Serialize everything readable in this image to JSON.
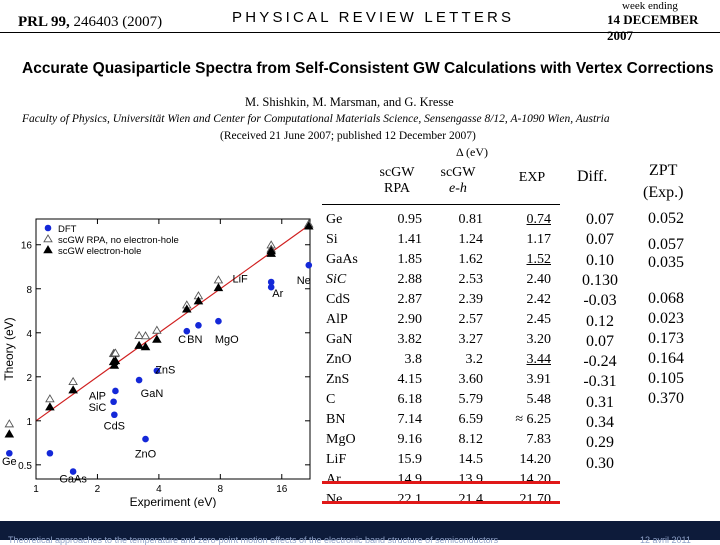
{
  "header": {
    "journal": "PRL",
    "volume": "99,",
    "article": "246403 (2007)",
    "journal_title": "PHYSICAL REVIEW LETTERS",
    "week_ending": "week ending",
    "date": "14 DECEMBER 2007"
  },
  "paper": {
    "title": "Accurate Quasiparticle Spectra from Self-Consistent GW Calculations with Vertex Corrections",
    "authors": "M. Shishkin, M. Marsman, and G. Kresse",
    "affiliation": "Faculty of Physics, Universität Wien and Center for Computational Materials Science, Sensengasse 8/12, A-1090 Wien, Austria",
    "received": "(Received 21 June 2007; published 12 December 2007)"
  },
  "table": {
    "unit": "Δ (eV)",
    "headers": {
      "col1_a": "scGW",
      "col1_b": "RPA",
      "col2_a": "scGW",
      "col2_b": "e-h",
      "col3": "EXP",
      "diff": "Diff.",
      "zpt_a": "ZPT",
      "zpt_b": "(Exp.)"
    },
    "rows": [
      {
        "mat": "Ge",
        "rpa": "0.95",
        "eh": "0.81",
        "exp": "0.74"
      },
      {
        "mat": "Si",
        "rpa": "1.41",
        "eh": "1.24",
        "exp": "1.17"
      },
      {
        "mat": "GaAs",
        "rpa": "1.85",
        "eh": "1.62",
        "exp": "1.52"
      },
      {
        "mat": "SiC",
        "rpa": "2.88",
        "eh": "2.53",
        "exp": "2.40"
      },
      {
        "mat": "CdS",
        "rpa": "2.87",
        "eh": "2.39",
        "exp": "2.42"
      },
      {
        "mat": "AlP",
        "rpa": "2.90",
        "eh": "2.57",
        "exp": "2.45"
      },
      {
        "mat": "GaN",
        "rpa": "3.82",
        "eh": "3.27",
        "exp": "3.20"
      },
      {
        "mat": "ZnO",
        "rpa": "3.8",
        "eh": "3.2",
        "exp": "3.44"
      },
      {
        "mat": "ZnS",
        "rpa": "4.15",
        "eh": "3.60",
        "exp": "3.91"
      },
      {
        "mat": "C",
        "rpa": "6.18",
        "eh": "5.79",
        "exp": "5.48"
      },
      {
        "mat": "BN",
        "rpa": "7.14",
        "eh": "6.59",
        "exp": "≈ 6.25"
      },
      {
        "mat": "MgO",
        "rpa": "9.16",
        "eh": "8.12",
        "exp": "7.83"
      },
      {
        "mat": "LiF",
        "rpa": "15.9",
        "eh": "14.5",
        "exp": "14.20"
      },
      {
        "mat": "Ar",
        "rpa": "14.9",
        "eh": "13.9",
        "exp": "14.20"
      },
      {
        "mat": "Ne",
        "rpa": "22.1",
        "eh": "21.4",
        "exp": "21.70"
      }
    ],
    "diff": [
      "0.07",
      "0.07",
      "0.10",
      "0.130",
      "-0.03",
      "0.12",
      "0.07",
      "-0.24",
      "-0.31",
      "0.31",
      "0.34",
      "0.29",
      "0.30"
    ],
    "zpt": [
      "0.052",
      "0.057",
      "0.035",
      "",
      "0.068",
      "0.023",
      "0.173",
      "0.164",
      "0.105",
      "0.370"
    ]
  },
  "chart_data": {
    "type": "scatter",
    "xlabel": "Experiment (eV)",
    "ylabel": "Theory (eV)",
    "scale": "log",
    "xlim": [
      1,
      22
    ],
    "ylim": [
      0.4,
      24
    ],
    "xticks": [
      1,
      2,
      4,
      8,
      16
    ],
    "yticks": [
      0.5,
      1,
      2,
      4,
      8,
      16
    ],
    "legend": {
      "placement": "top-left",
      "entries": [
        "DFT",
        "scGW RPA, no electron-hole",
        "scGW electron-hole"
      ]
    },
    "series": [
      {
        "name": "DFT",
        "marker": "circle",
        "color": "#1428d8",
        "points": [
          [
            0.74,
            0.6
          ],
          [
            1.17,
            0.6
          ],
          [
            1.52,
            0.45
          ],
          [
            2.4,
            1.35
          ],
          [
            2.42,
            1.1
          ],
          [
            2.45,
            1.6
          ],
          [
            3.2,
            1.9
          ],
          [
            3.44,
            0.75
          ],
          [
            3.91,
            2.2
          ],
          [
            5.48,
            4.1
          ],
          [
            6.25,
            4.5
          ],
          [
            7.83,
            4.8
          ],
          [
            14.2,
            8.9
          ],
          [
            14.2,
            8.2
          ],
          [
            21.7,
            11.6
          ]
        ]
      },
      {
        "name": "scGW RPA, no electron-hole",
        "marker": "triangle-open",
        "color": "#555555",
        "points": [
          [
            0.74,
            0.95
          ],
          [
            1.17,
            1.41
          ],
          [
            1.52,
            1.85
          ],
          [
            2.4,
            2.88
          ],
          [
            2.42,
            2.87
          ],
          [
            2.45,
            2.9
          ],
          [
            3.2,
            3.82
          ],
          [
            3.44,
            3.8
          ],
          [
            3.91,
            4.15
          ],
          [
            5.48,
            6.18
          ],
          [
            6.25,
            7.14
          ],
          [
            7.83,
            9.16
          ],
          [
            14.2,
            15.9
          ],
          [
            14.2,
            14.9
          ],
          [
            21.7,
            22.1
          ]
        ]
      },
      {
        "name": "scGW electron-hole",
        "marker": "triangle-filled",
        "color": "#000000",
        "points": [
          [
            0.74,
            0.81
          ],
          [
            1.17,
            1.24
          ],
          [
            1.52,
            1.62
          ],
          [
            2.4,
            2.53
          ],
          [
            2.42,
            2.39
          ],
          [
            2.45,
            2.57
          ],
          [
            3.2,
            3.27
          ],
          [
            3.44,
            3.2
          ],
          [
            3.91,
            3.6
          ],
          [
            5.48,
            5.79
          ],
          [
            6.25,
            6.59
          ],
          [
            7.83,
            8.12
          ],
          [
            14.2,
            14.5
          ],
          [
            14.2,
            13.9
          ],
          [
            21.7,
            21.4
          ]
        ]
      }
    ],
    "point_labels": [
      {
        "text": "Ge",
        "x": 0.74,
        "y": 0.5
      },
      {
        "text": "GaAs",
        "x": 1.52,
        "y": 0.38
      },
      {
        "text": "ZnO",
        "x": 3.44,
        "y": 0.56
      },
      {
        "text": "CdS",
        "x": 2.42,
        "y": 0.87
      },
      {
        "text": "SiC",
        "x": 2.0,
        "y": 1.17
      },
      {
        "text": "AlP",
        "x": 2.0,
        "y": 1.4
      },
      {
        "text": "GaN",
        "x": 3.7,
        "y": 1.45
      },
      {
        "text": "ZnS",
        "x": 4.3,
        "y": 2.1
      },
      {
        "text": "C",
        "x": 5.2,
        "y": 3.4
      },
      {
        "text": "BN",
        "x": 6.0,
        "y": 3.4
      },
      {
        "text": "MgO",
        "x": 8.6,
        "y": 3.4
      },
      {
        "text": "LiF",
        "x": 10.0,
        "y": 8.8
      },
      {
        "text": "Ar",
        "x": 15.3,
        "y": 7.0
      },
      {
        "text": "Ne",
        "x": 20.5,
        "y": 8.6
      }
    ],
    "diagonal": {
      "color": "#d02020"
    }
  },
  "footer": {
    "text": "Theoretical approaches to the temperature and zero-point motion effects of the electronic band structure of semiconductors",
    "date": "12 avril 2011"
  }
}
